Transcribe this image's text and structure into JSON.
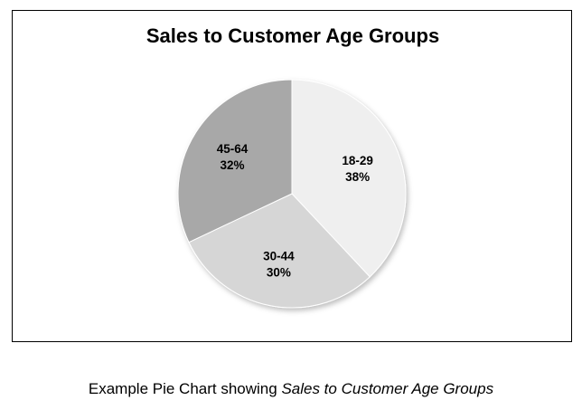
{
  "chart_data": {
    "type": "pie",
    "title": "Sales to Customer Age Groups",
    "categories": [
      "18-29",
      "30-44",
      "45-64"
    ],
    "values": [
      38,
      30,
      32
    ],
    "value_labels": [
      "38%",
      "30%",
      "32%"
    ],
    "colors": [
      "#efefef",
      "#d6d6d6",
      "#a8a8a8"
    ],
    "legend": "none"
  },
  "caption": {
    "prefix": "Example Pie Chart showing ",
    "emphasis": "Sales to Customer Age Groups"
  }
}
